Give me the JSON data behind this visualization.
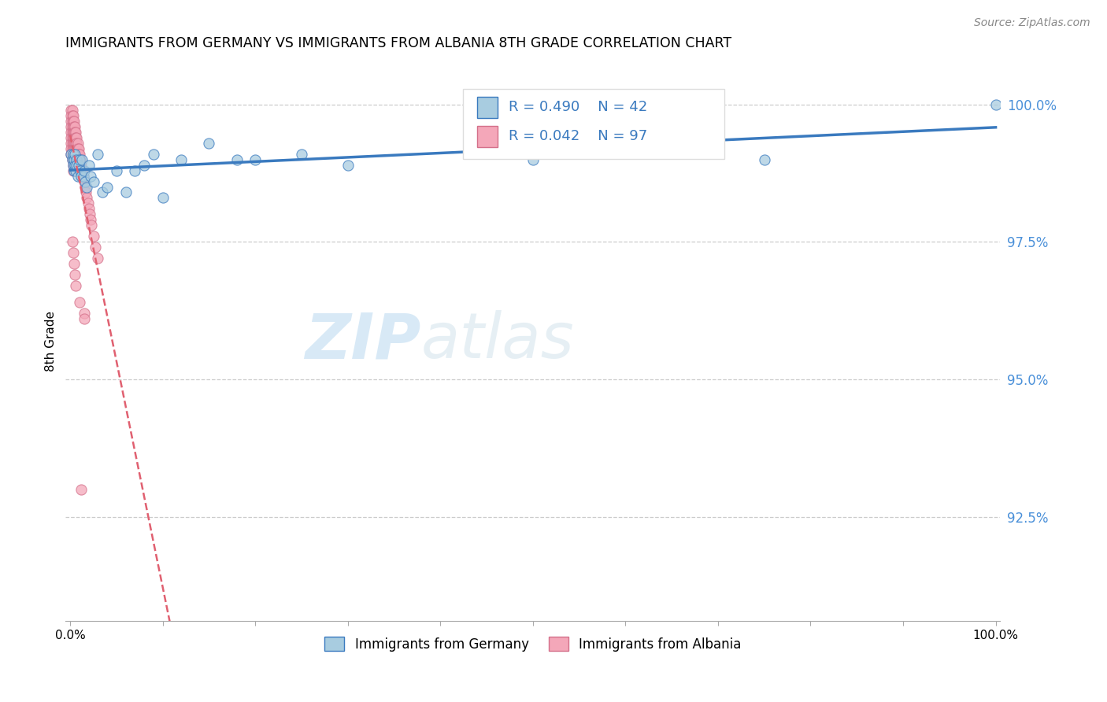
{
  "title": "IMMIGRANTS FROM GERMANY VS IMMIGRANTS FROM ALBANIA 8TH GRADE CORRELATION CHART",
  "source": "Source: ZipAtlas.com",
  "ylabel": "8th Grade",
  "R_germany": 0.49,
  "N_germany": 42,
  "R_albania": 0.042,
  "N_albania": 97,
  "color_germany": "#a8cce0",
  "color_albania": "#f4a7b9",
  "trendline_germany_color": "#3a7abf",
  "trendline_albania_color": "#e06070",
  "watermark_zip": "ZIP",
  "watermark_atlas": "atlas",
  "ytick_vals": [
    0.925,
    0.95,
    0.975,
    1.0
  ],
  "ytick_labels": [
    "92.5%",
    "95.0%",
    "97.5%",
    "100.0%"
  ],
  "ylim_min": 0.906,
  "ylim_max": 1.008,
  "xlim_min": -0.005,
  "xlim_max": 1.005,
  "germany_x": [
    0.001,
    0.002,
    0.003,
    0.003,
    0.004,
    0.004,
    0.005,
    0.005,
    0.006,
    0.007,
    0.007,
    0.008,
    0.009,
    0.01,
    0.011,
    0.012,
    0.013,
    0.014,
    0.015,
    0.016,
    0.018,
    0.02,
    0.022,
    0.025,
    0.03,
    0.035,
    0.04,
    0.05,
    0.06,
    0.07,
    0.08,
    0.09,
    0.1,
    0.12,
    0.15,
    0.18,
    0.2,
    0.25,
    0.3,
    0.5,
    0.75,
    1.0
  ],
  "germany_y": [
    0.991,
    0.99,
    0.989,
    0.991,
    0.99,
    0.988,
    0.989,
    0.991,
    0.988,
    0.99,
    0.989,
    0.987,
    0.989,
    0.99,
    0.988,
    0.987,
    0.99,
    0.987,
    0.988,
    0.986,
    0.985,
    0.989,
    0.987,
    0.986,
    0.991,
    0.984,
    0.985,
    0.988,
    0.984,
    0.988,
    0.989,
    0.991,
    0.983,
    0.99,
    0.993,
    0.99,
    0.99,
    0.991,
    0.989,
    0.99,
    0.99,
    1.0
  ],
  "albania_x": [
    0.001,
    0.001,
    0.001,
    0.001,
    0.001,
    0.001,
    0.001,
    0.001,
    0.001,
    0.002,
    0.002,
    0.002,
    0.002,
    0.002,
    0.002,
    0.002,
    0.002,
    0.002,
    0.002,
    0.003,
    0.003,
    0.003,
    0.003,
    0.003,
    0.003,
    0.003,
    0.003,
    0.003,
    0.003,
    0.003,
    0.004,
    0.004,
    0.004,
    0.004,
    0.004,
    0.004,
    0.004,
    0.004,
    0.004,
    0.005,
    0.005,
    0.005,
    0.005,
    0.005,
    0.005,
    0.006,
    0.006,
    0.006,
    0.006,
    0.006,
    0.006,
    0.007,
    0.007,
    0.007,
    0.007,
    0.007,
    0.008,
    0.008,
    0.008,
    0.008,
    0.008,
    0.009,
    0.009,
    0.009,
    0.009,
    0.01,
    0.01,
    0.01,
    0.01,
    0.011,
    0.011,
    0.012,
    0.012,
    0.013,
    0.013,
    0.014,
    0.015,
    0.016,
    0.017,
    0.018,
    0.019,
    0.02,
    0.021,
    0.022,
    0.023,
    0.025,
    0.027,
    0.03,
    0.002,
    0.003,
    0.004,
    0.005,
    0.006,
    0.01,
    0.015,
    0.015,
    0.012
  ],
  "albania_y": [
    0.999,
    0.998,
    0.997,
    0.996,
    0.995,
    0.994,
    0.993,
    0.992,
    0.991,
    0.999,
    0.998,
    0.997,
    0.996,
    0.995,
    0.994,
    0.993,
    0.992,
    0.991,
    0.99,
    0.998,
    0.997,
    0.996,
    0.995,
    0.994,
    0.993,
    0.992,
    0.991,
    0.99,
    0.989,
    0.988,
    0.997,
    0.996,
    0.995,
    0.994,
    0.993,
    0.992,
    0.991,
    0.99,
    0.989,
    0.996,
    0.995,
    0.994,
    0.993,
    0.992,
    0.991,
    0.995,
    0.994,
    0.993,
    0.992,
    0.991,
    0.99,
    0.994,
    0.993,
    0.992,
    0.991,
    0.99,
    0.993,
    0.992,
    0.991,
    0.99,
    0.989,
    0.992,
    0.991,
    0.99,
    0.989,
    0.991,
    0.99,
    0.989,
    0.988,
    0.99,
    0.989,
    0.989,
    0.988,
    0.988,
    0.987,
    0.987,
    0.986,
    0.985,
    0.984,
    0.983,
    0.982,
    0.981,
    0.98,
    0.979,
    0.978,
    0.976,
    0.974,
    0.972,
    0.975,
    0.973,
    0.971,
    0.969,
    0.967,
    0.964,
    0.962,
    0.961,
    0.93
  ]
}
